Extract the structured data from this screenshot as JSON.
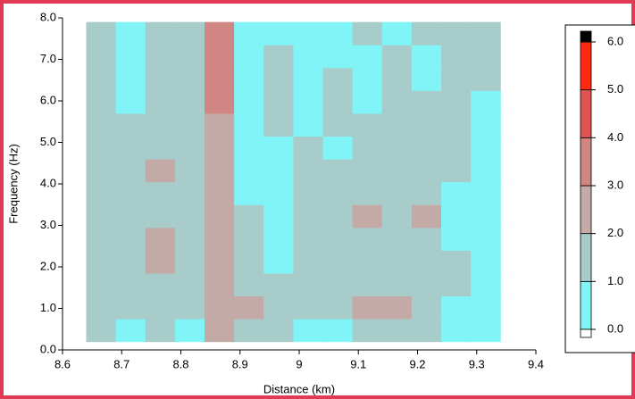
{
  "chart_data": {
    "type": "contour",
    "x_label": "Distance (km)",
    "y_label": "Frequency (Hz)",
    "xlim": [
      8.6,
      9.4
    ],
    "ylim": [
      0,
      8
    ],
    "xticks": [
      8.6,
      8.7,
      8.8,
      8.9,
      9.0,
      9.1,
      9.2,
      9.3,
      9.4
    ],
    "yticks": [
      {
        "value": 0,
        "label": "0.0"
      },
      {
        "value": 1,
        "label": "1.0"
      },
      {
        "value": 2,
        "label": "2.0"
      },
      {
        "value": 3,
        "label": "3.0"
      },
      {
        "value": 4,
        "label": "4.0"
      },
      {
        "value": 5,
        "label": "5.0"
      },
      {
        "value": 6,
        "label": "6.0"
      },
      {
        "value": 7,
        "label": "7.0"
      },
      {
        "value": 8,
        "label": "8.0"
      }
    ],
    "x": [
      8.665,
      8.715,
      8.765,
      8.815,
      8.865,
      8.915,
      8.965,
      9.015,
      9.065,
      9.115,
      9.165,
      9.215,
      9.265,
      9.315
    ],
    "y": [
      0.475,
      1.025,
      1.575,
      2.125,
      2.675,
      3.225,
      3.775,
      4.325,
      4.875,
      5.425,
      5.975,
      6.525,
      7.075,
      7.625
    ],
    "z": [
      [
        1.5,
        0.5,
        1.5,
        0.5,
        2.5,
        1.5,
        1.5,
        0.5,
        0.5,
        1.5,
        1.5,
        1.5,
        0.5,
        0.5
      ],
      [
        1.5,
        1.5,
        1.5,
        1.5,
        2.5,
        2.5,
        1.5,
        1.5,
        1.5,
        2.5,
        2.5,
        1.5,
        0.5,
        0.5
      ],
      [
        1.5,
        1.5,
        1.5,
        1.5,
        2.5,
        1.5,
        1.5,
        1.5,
        1.5,
        1.5,
        1.5,
        1.5,
        1.5,
        0.5
      ],
      [
        1.5,
        1.5,
        2.5,
        1.5,
        2.5,
        1.5,
        0.5,
        1.5,
        1.5,
        1.5,
        1.5,
        1.5,
        1.5,
        0.5
      ],
      [
        1.5,
        1.5,
        2.5,
        1.5,
        2.5,
        1.5,
        0.5,
        1.5,
        1.5,
        1.5,
        1.5,
        1.5,
        0.5,
        0.5
      ],
      [
        1.5,
        1.5,
        1.5,
        1.5,
        2.5,
        1.5,
        0.5,
        1.5,
        1.5,
        2.5,
        1.5,
        2.5,
        0.5,
        0.5
      ],
      [
        1.5,
        1.5,
        1.5,
        1.5,
        2.5,
        0.5,
        0.5,
        1.5,
        1.5,
        1.5,
        1.5,
        1.5,
        0.5,
        0.5
      ],
      [
        1.5,
        1.5,
        2.5,
        1.5,
        2.5,
        0.5,
        0.5,
        1.5,
        1.5,
        1.5,
        1.5,
        1.5,
        1.5,
        0.5
      ],
      [
        1.5,
        1.5,
        1.5,
        1.5,
        2.5,
        0.5,
        0.5,
        1.5,
        0.5,
        1.5,
        1.5,
        1.5,
        1.5,
        0.5
      ],
      [
        1.5,
        1.5,
        1.5,
        1.5,
        2.5,
        0.5,
        1.5,
        0.5,
        1.5,
        1.5,
        1.5,
        1.5,
        1.5,
        0.5
      ],
      [
        1.5,
        0.5,
        1.5,
        1.5,
        3.5,
        0.5,
        1.5,
        0.5,
        1.5,
        0.5,
        1.5,
        1.5,
        1.5,
        0.5
      ],
      [
        1.5,
        0.5,
        1.5,
        1.5,
        3.5,
        0.5,
        1.5,
        0.5,
        1.5,
        0.5,
        1.5,
        0.5,
        1.5,
        1.5
      ],
      [
        1.5,
        0.5,
        1.5,
        1.5,
        3.5,
        0.5,
        1.5,
        0.5,
        0.5,
        0.5,
        1.5,
        0.5,
        1.5,
        1.5
      ],
      [
        1.5,
        0.5,
        1.5,
        1.5,
        3.5,
        0.5,
        0.5,
        0.5,
        0.5,
        1.5,
        0.5,
        1.5,
        1.5,
        1.5
      ]
    ],
    "colorbar_ticks": [
      {
        "value": 0,
        "label": "0.0"
      },
      {
        "value": 1,
        "label": "1.0"
      },
      {
        "value": 2,
        "label": "2.0"
      },
      {
        "value": 3,
        "label": "3.0"
      },
      {
        "value": 4,
        "label": "4.0"
      },
      {
        "value": 5,
        "label": "5.0"
      },
      {
        "value": 6,
        "label": "6.0"
      }
    ],
    "level_colors": [
      "#80f4f6",
      "#a8ccca",
      "#c4aaa6",
      "#d08682",
      "#e05454",
      "#ff2a10"
    ],
    "over_color": "#000000",
    "under_color": "#ffffff"
  }
}
